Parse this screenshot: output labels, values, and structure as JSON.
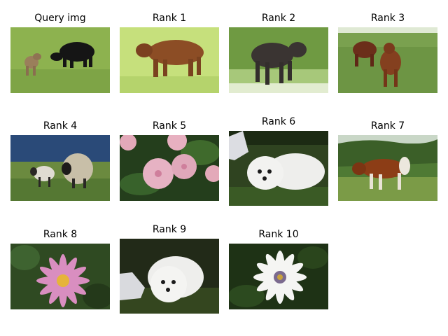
{
  "figure": {
    "panels": [
      {
        "id": "query",
        "label": "Query img",
        "content": "cow-and-calf-grass-icon"
      },
      {
        "id": "rank1",
        "label": "Rank 1",
        "content": "brown-cow-grass-icon"
      },
      {
        "id": "rank2",
        "label": "Rank 2",
        "content": "black-cow-grass-icon"
      },
      {
        "id": "rank3",
        "label": "Rank 3",
        "content": "two-brown-cows-grass-icon"
      },
      {
        "id": "rank4",
        "label": "Rank 4",
        "content": "sheep-and-lamb-coast-icon"
      },
      {
        "id": "rank5",
        "label": "Rank 5",
        "content": "pink-flowers-leaves-icon"
      },
      {
        "id": "rank6",
        "label": "Rank 6",
        "content": "white-dog-grass-icon"
      },
      {
        "id": "rank7",
        "label": "Rank 7",
        "content": "brown-white-cow-field-icon"
      },
      {
        "id": "rank8",
        "label": "Rank 8",
        "content": "pink-daisy-icon"
      },
      {
        "id": "rank9",
        "label": "Rank 9",
        "content": "white-dog-shoe-icon"
      },
      {
        "id": "rank10",
        "label": "Rank 10",
        "content": "white-daisy-icon"
      }
    ]
  }
}
